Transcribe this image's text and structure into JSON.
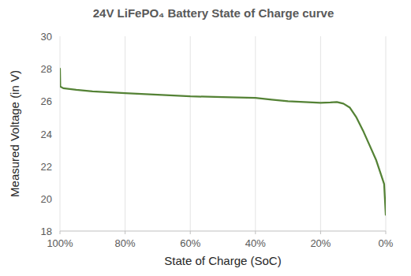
{
  "chart_data": {
    "type": "line",
    "title": "24V LiFePO₄ Battery State of Charge curve",
    "x_label": "State of Charge (SoC)",
    "y_label": "Measured Voltage (in V)",
    "x": [
      100,
      99.9,
      99,
      95,
      90,
      80,
      70,
      60,
      50,
      40,
      35,
      30,
      25,
      20,
      17,
      15,
      13,
      11,
      9,
      7,
      5,
      3,
      1.5,
      0.5,
      0
    ],
    "values": [
      28.0,
      26.9,
      26.8,
      26.7,
      26.6,
      26.5,
      26.4,
      26.3,
      26.25,
      26.2,
      26.1,
      26.0,
      25.95,
      25.9,
      25.92,
      25.95,
      25.85,
      25.6,
      25.0,
      24.2,
      23.3,
      22.4,
      21.5,
      20.9,
      19.0
    ],
    "color": "#548235",
    "xlim": [
      100,
      0
    ],
    "xticks": [
      {
        "value": 100,
        "label": "100%"
      },
      {
        "value": 80,
        "label": "80%"
      },
      {
        "value": 60,
        "label": "60%"
      },
      {
        "value": 40,
        "label": "40%"
      },
      {
        "value": 20,
        "label": "20%"
      },
      {
        "value": 0,
        "label": "0%"
      }
    ],
    "ylim": [
      18,
      30
    ],
    "yticks": [
      18,
      20,
      22,
      24,
      26,
      28,
      30
    ],
    "grid": true
  }
}
